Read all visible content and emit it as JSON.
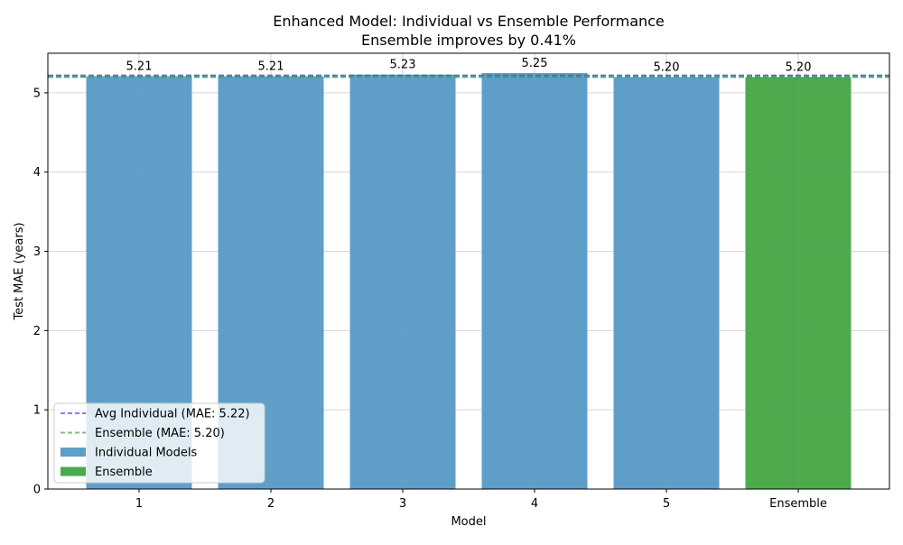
{
  "chart_data": {
    "type": "bar",
    "title": "Enhanced Model: Individual vs Ensemble Performance",
    "subtitle": "Ensemble improves by 0.41%",
    "xlabel": "Model",
    "ylabel": "Test MAE (years)",
    "categories": [
      "1",
      "2",
      "3",
      "4",
      "5",
      "Ensemble"
    ],
    "series": [
      {
        "name": "Individual Models",
        "color": "#5f9ec9",
        "values": [
          5.21,
          5.21,
          5.23,
          5.25,
          5.2,
          null
        ]
      },
      {
        "name": "Ensemble",
        "color": "#4caa4c",
        "values": [
          null,
          null,
          null,
          null,
          null,
          5.2
        ]
      }
    ],
    "value_labels": [
      "5.21",
      "5.21",
      "5.23",
      "5.25",
      "5.20",
      "5.20"
    ],
    "reference_lines": [
      {
        "name": "Avg Individual (MAE: 5.22)",
        "value": 5.22,
        "color": "#7f7fff",
        "style": "dashed"
      },
      {
        "name": "Ensemble (MAE: 5.20)",
        "value": 5.2,
        "color": "#7fbf7f",
        "style": "dashed"
      }
    ],
    "ylim": [
      0,
      5.5
    ],
    "yticks": [
      "0",
      "1",
      "2",
      "3",
      "4",
      "5"
    ],
    "grid": true,
    "legend": {
      "position": "lower-left",
      "entries": [
        {
          "label": "Avg Individual (MAE: 5.22)",
          "kind": "line",
          "color": "#7f7fff"
        },
        {
          "label": "Ensemble (MAE: 5.20)",
          "kind": "line",
          "color": "#7fbf7f"
        },
        {
          "label": "Individual Models",
          "kind": "patch",
          "color": "#5f9ec9"
        },
        {
          "label": "Ensemble",
          "kind": "patch",
          "color": "#4caa4c"
        }
      ]
    }
  }
}
